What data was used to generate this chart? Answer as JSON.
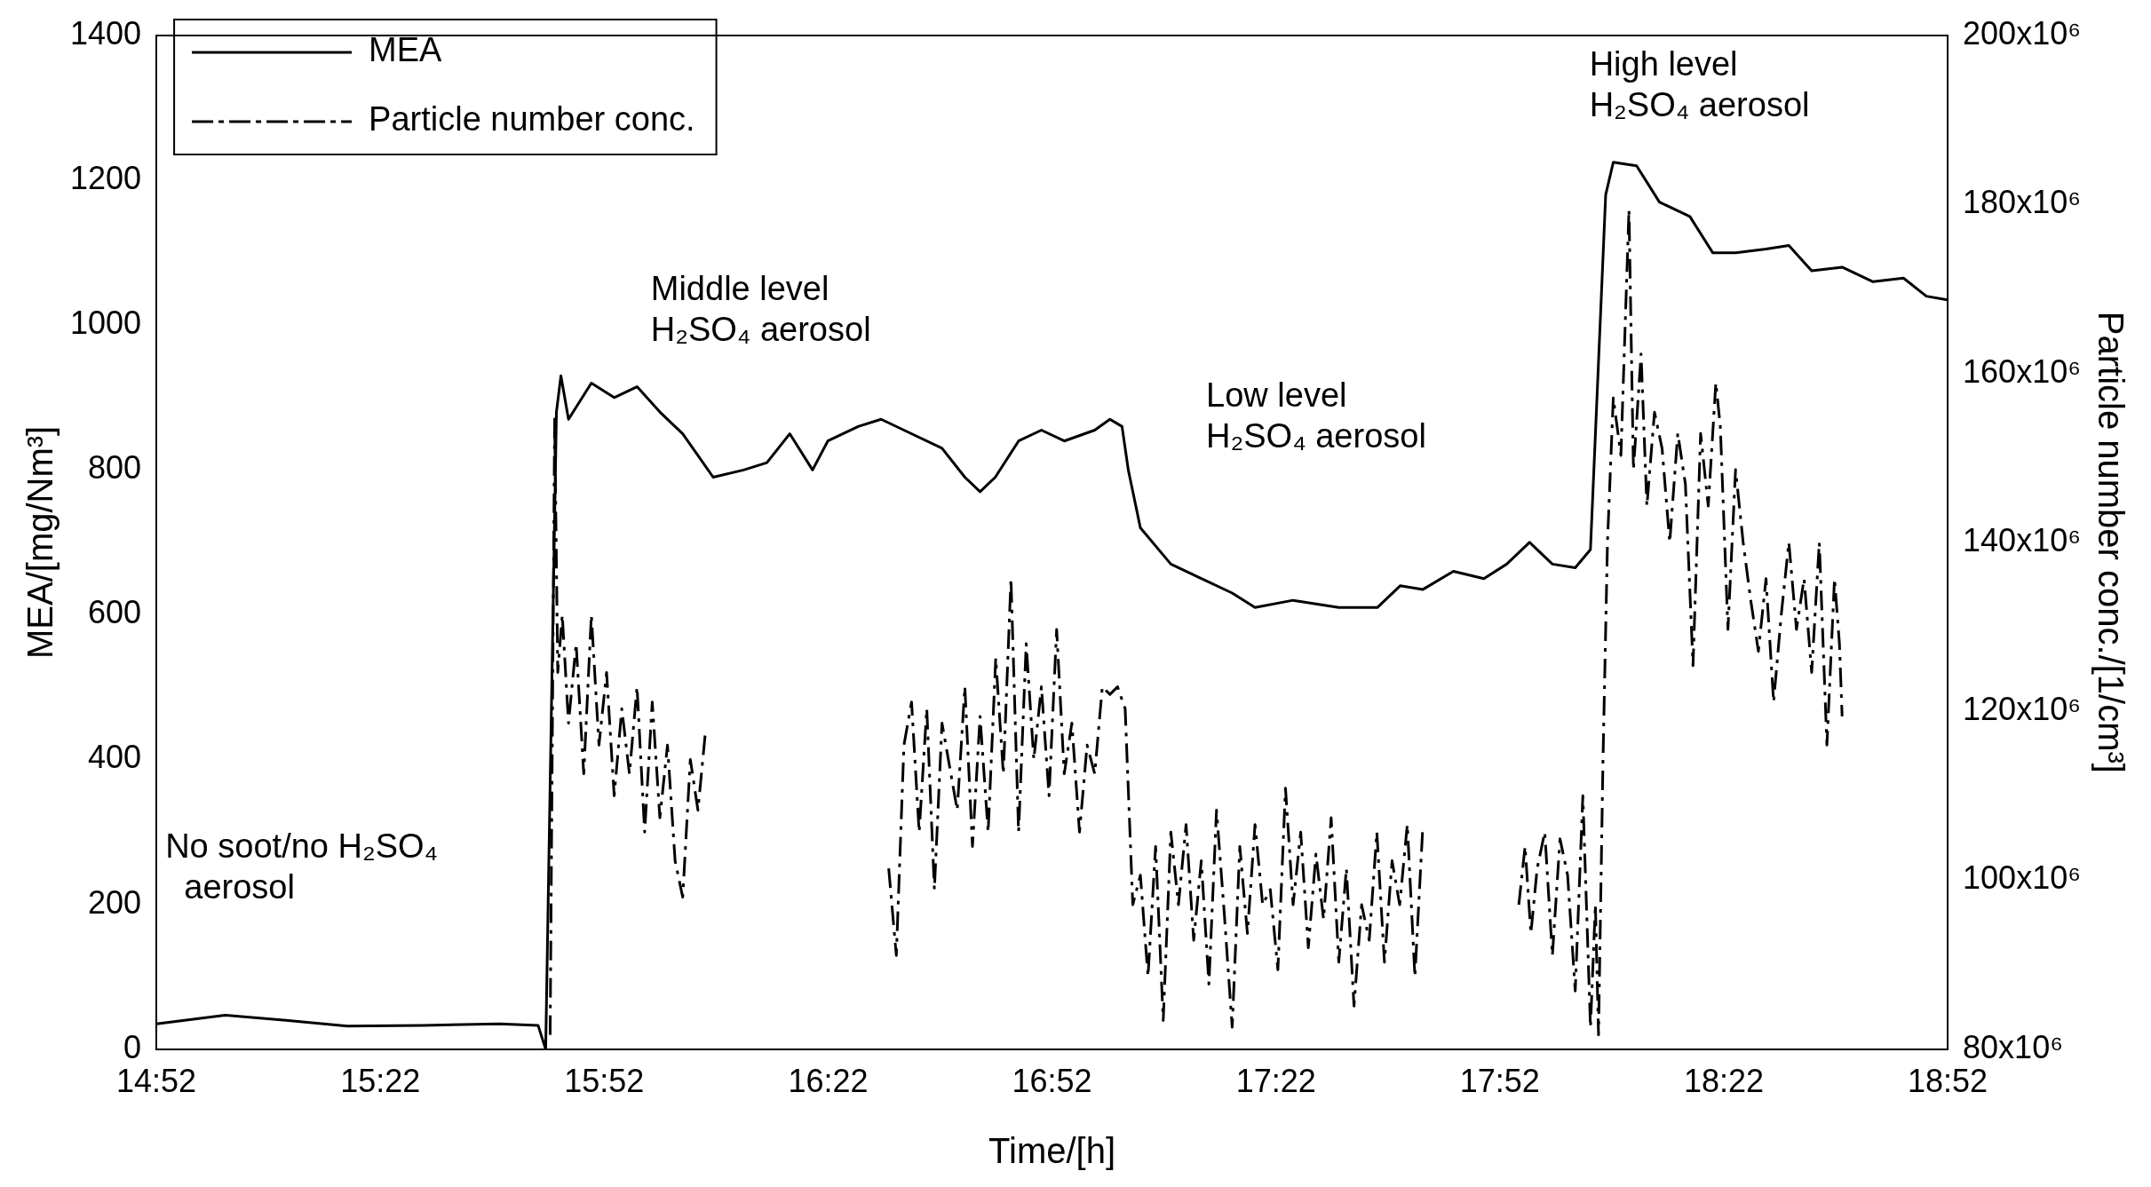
{
  "chart_data": {
    "type": "line",
    "xlabel": "Time/[h]",
    "ylabel": "MEA/[mg/Nm³]",
    "y2label": "Particle number conc./[1/cm³]",
    "xlim": [
      14.8667,
      18.8667
    ],
    "xticks": [
      {
        "value": 14.8667,
        "label": "14:52"
      },
      {
        "value": 15.3667,
        "label": "15:22"
      },
      {
        "value": 15.8667,
        "label": "15:52"
      },
      {
        "value": 16.3667,
        "label": "16:22"
      },
      {
        "value": 16.8667,
        "label": "16:52"
      },
      {
        "value": 17.3667,
        "label": "17:22"
      },
      {
        "value": 17.8667,
        "label": "17:52"
      },
      {
        "value": 18.3667,
        "label": "18:22"
      },
      {
        "value": 18.8667,
        "label": "18:52"
      }
    ],
    "ylim": [
      0,
      1400
    ],
    "yticks": [
      0,
      200,
      400,
      600,
      800,
      1000,
      1200,
      1400
    ],
    "y2lim": [
      80000000,
      200000000
    ],
    "y2ticks": [
      {
        "value": 80000000,
        "label": "80x10⁶"
      },
      {
        "value": 100000000,
        "label": "100x10⁶"
      },
      {
        "value": 120000000,
        "label": "120x10⁶"
      },
      {
        "value": 140000000,
        "label": "140x10⁶"
      },
      {
        "value": 160000000,
        "label": "160x10⁶"
      },
      {
        "value": 180000000,
        "label": "180x10⁶"
      },
      {
        "value": 200000000,
        "label": "200x10⁶"
      }
    ],
    "grid": false,
    "legend": "top left",
    "series": [
      {
        "name": "MEA",
        "color": "#000000",
        "line_style": "solid",
        "x": [
          14.867,
          15.02,
          15.156,
          15.293,
          15.463,
          15.633,
          15.719,
          15.736,
          15.76,
          15.77,
          15.787,
          15.838,
          15.889,
          15.94,
          15.991,
          16.042,
          16.11,
          16.178,
          16.23,
          16.281,
          16.332,
          16.366,
          16.434,
          16.485,
          16.536,
          16.621,
          16.672,
          16.706,
          16.74,
          16.792,
          16.843,
          16.894,
          16.962,
          16.996,
          17.023,
          17.037,
          17.064,
          17.132,
          17.2,
          17.269,
          17.32,
          17.405,
          17.507,
          17.593,
          17.644,
          17.695,
          17.763,
          17.831,
          17.882,
          17.933,
          17.984,
          18.035,
          18.069,
          18.103,
          18.12,
          18.172,
          18.223,
          18.291,
          18.342,
          18.393,
          18.461,
          18.512,
          18.563,
          18.631,
          18.7,
          18.768,
          18.819,
          18.866
        ],
        "values": [
          35,
          47,
          40,
          32,
          33,
          35,
          33,
          0,
          880,
          930,
          870,
          920,
          900,
          915,
          880,
          850,
          790,
          800,
          810,
          850,
          800,
          840,
          860,
          870,
          855,
          830,
          790,
          770,
          790,
          840,
          855,
          840,
          855,
          870,
          860,
          800,
          720,
          670,
          650,
          630,
          610,
          620,
          610,
          610,
          640,
          635,
          660,
          650,
          670,
          700,
          670,
          665,
          690,
          1180,
          1225,
          1220,
          1170,
          1150,
          1100,
          1100,
          1105,
          1110,
          1075,
          1080,
          1060,
          1065,
          1040,
          1035
        ]
      },
      {
        "name": "Particle number conc.",
        "color": "#000000",
        "line_style": "dashed",
        "axis": "y2",
        "x": [
          15.746,
          15.756,
          15.763,
          15.773,
          15.787,
          15.804,
          15.821,
          15.838,
          15.855,
          15.872,
          15.889,
          15.906,
          15.923,
          15.94,
          15.957,
          15.974,
          15.991,
          16.008,
          16.025,
          16.042,
          16.059,
          16.076,
          16.093,
          16.3,
          16.502,
          16.519,
          16.536,
          16.553,
          16.57,
          16.587,
          16.604,
          16.621,
          16.655,
          16.672,
          16.689,
          16.706,
          16.724,
          16.741,
          16.758,
          16.775,
          16.792,
          16.809,
          16.826,
          16.843,
          16.86,
          16.877,
          16.894,
          16.911,
          16.928,
          16.945,
          16.962,
          16.979,
          16.996,
          17.013,
          17.03,
          17.047,
          17.064,
          17.081,
          17.098,
          17.115,
          17.132,
          17.149,
          17.166,
          17.183,
          17.2,
          17.217,
          17.234,
          17.251,
          17.269,
          17.286,
          17.303,
          17.32,
          17.337,
          17.354,
          17.371,
          17.388,
          17.405,
          17.422,
          17.439,
          17.456,
          17.473,
          17.49,
          17.507,
          17.524,
          17.541,
          17.558,
          17.575,
          17.592,
          17.609,
          17.626,
          17.643,
          17.66,
          17.677,
          17.694,
          17.8,
          17.909,
          17.923,
          17.936,
          17.95,
          17.967,
          17.984,
          18.001,
          18.018,
          18.035,
          18.052,
          18.069,
          18.08,
          18.087,
          18.097,
          18.107,
          18.12,
          18.137,
          18.155,
          18.165,
          18.182,
          18.195,
          18.212,
          18.229,
          18.246,
          18.264,
          18.281,
          18.298,
          18.315,
          18.332,
          18.349,
          18.359,
          18.376,
          18.393,
          18.41,
          18.427,
          18.444,
          18.461,
          18.478,
          18.495,
          18.512,
          18.529,
          18.546,
          18.563,
          18.58,
          18.597,
          18.614,
          18.625,
          18.631
        ],
        "values": [
          81700000,
          154600000,
          124600000,
          131400000,
          118600000,
          128000000,
          112600000,
          131400000,
          116000000,
          124600000,
          110000000,
          120300000,
          112600000,
          122900000,
          105700000,
          121100000,
          107400000,
          116000000,
          102300000,
          98000000,
          114300000,
          108300000,
          117700000,
          null,
          101400000,
          91100000,
          116000000,
          121100000,
          105700000,
          120300000,
          98900000,
          118600000,
          108300000,
          122900000,
          104000000,
          119400000,
          105700000,
          126300000,
          112600000,
          135700000,
          105700000,
          128000000,
          114300000,
          122900000,
          110000000,
          129700000,
          112600000,
          118600000,
          105700000,
          116000000,
          112600000,
          122900000,
          122000000,
          122900000,
          120300000,
          97100000,
          100600000,
          88600000,
          104000000,
          83400000,
          105700000,
          97100000,
          106600000,
          92900000,
          102300000,
          87700000,
          108300000,
          96300000,
          82600000,
          104000000,
          93700000,
          106600000,
          97100000,
          98900000,
          89400000,
          110900000,
          97100000,
          105700000,
          92000000,
          103100000,
          95400000,
          107400000,
          90300000,
          101400000,
          85100000,
          97100000,
          92900000,
          105700000,
          90300000,
          102300000,
          97100000,
          106600000,
          88600000,
          105700000,
          null,
          97100000,
          104000000,
          93700000,
          101400000,
          105700000,
          91100000,
          104900000,
          100600000,
          86900000,
          110000000,
          82600000,
          97100000,
          81700000,
          114300000,
          140000000,
          157100000,
          150300000,
          179400000,
          148600000,
          162300000,
          144300000,
          155400000,
          151100000,
          140000000,
          152900000,
          146900000,
          125400000,
          152900000,
          144300000,
          158900000,
          153700000,
          129700000,
          148600000,
          140000000,
          133100000,
          127100000,
          135700000,
          121100000,
          131400000,
          140000000,
          129700000,
          135700000,
          124600000,
          140000000,
          116000000,
          135700000,
          128000000,
          119400000
        ]
      }
    ],
    "annotations": [
      "No soot/no H₂SO₄\n  aerosol",
      "Middle level\nH₂SO₄ aerosol",
      "Low level\nH₂SO₄ aerosol",
      "High level\nH₂SO₄ aerosol"
    ]
  }
}
